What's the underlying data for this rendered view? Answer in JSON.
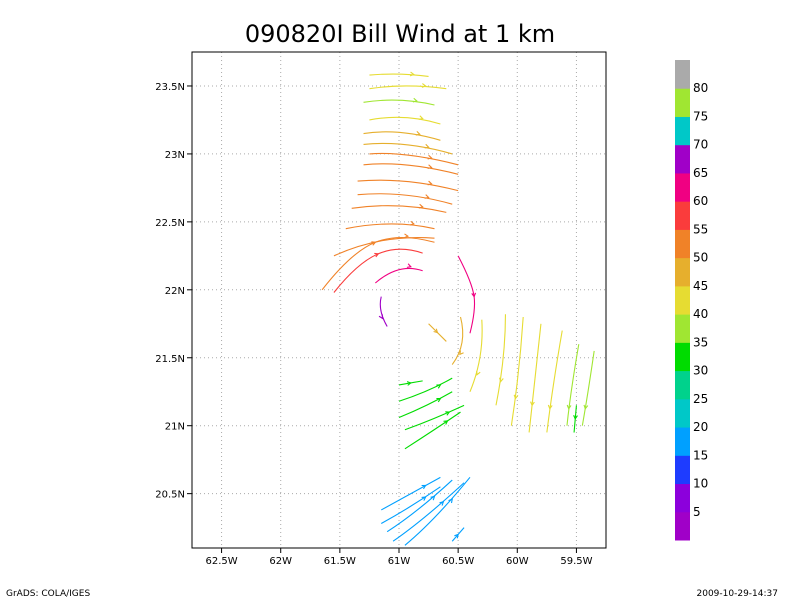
{
  "chart_data": {
    "type": "streamline",
    "title": "090820I Bill Wind at 1 km",
    "x_ticks": [
      "62.5W",
      "62W",
      "61.5W",
      "61W",
      "60.5W",
      "60W",
      "59.5W"
    ],
    "y_ticks": [
      "23.5N",
      "23N",
      "22.5N",
      "22N",
      "21.5N",
      "21N",
      "20.5N"
    ],
    "xlim": [
      -62.75,
      -59.25
    ],
    "ylim": [
      20.1,
      23.75
    ],
    "grid": true,
    "colorbar": {
      "labels": [
        "5",
        "10",
        "15",
        "20",
        "25",
        "30",
        "35",
        "40",
        "45",
        "50",
        "55",
        "60",
        "65",
        "70",
        "75",
        "80"
      ],
      "colors": [
        "#a000c8",
        "#8c00dc",
        "#1e3cff",
        "#00a0ff",
        "#00c8c8",
        "#00d28c",
        "#00dc00",
        "#a0e632",
        "#e6dc32",
        "#e6af2d",
        "#f08228",
        "#fa3c3c",
        "#f00082",
        "#a000c8",
        "#00c8c8",
        "#a0e632",
        "#aaaaaa"
      ]
    },
    "series": [
      {
        "speed_kt": 45,
        "points": [
          [
            -61.25,
            23.58
          ],
          [
            -61.0,
            23.6
          ],
          [
            -60.75,
            23.57
          ]
        ]
      },
      {
        "speed_kt": 45,
        "points": [
          [
            -61.25,
            23.48
          ],
          [
            -60.95,
            23.52
          ],
          [
            -60.6,
            23.48
          ]
        ]
      },
      {
        "speed_kt": 40,
        "points": [
          [
            -61.3,
            23.38
          ],
          [
            -61.0,
            23.42
          ],
          [
            -60.7,
            23.36
          ]
        ]
      },
      {
        "speed_kt": 45,
        "points": [
          [
            -61.25,
            23.25
          ],
          [
            -60.95,
            23.3
          ],
          [
            -60.65,
            23.22
          ]
        ]
      },
      {
        "speed_kt": 50,
        "points": [
          [
            -61.3,
            23.15
          ],
          [
            -61.0,
            23.19
          ],
          [
            -60.65,
            23.1
          ]
        ]
      },
      {
        "speed_kt": 50,
        "points": [
          [
            -61.3,
            23.07
          ],
          [
            -60.95,
            23.1
          ],
          [
            -60.55,
            23.0
          ]
        ]
      },
      {
        "speed_kt": 55,
        "points": [
          [
            -61.25,
            23.0
          ],
          [
            -60.95,
            23.02
          ],
          [
            -60.5,
            22.92
          ]
        ]
      },
      {
        "speed_kt": 55,
        "points": [
          [
            -61.3,
            22.92
          ],
          [
            -60.95,
            22.95
          ],
          [
            -60.5,
            22.85
          ]
        ]
      },
      {
        "speed_kt": 55,
        "points": [
          [
            -61.35,
            22.8
          ],
          [
            -60.95,
            22.83
          ],
          [
            -60.5,
            22.73
          ]
        ]
      },
      {
        "speed_kt": 55,
        "points": [
          [
            -61.35,
            22.7
          ],
          [
            -60.95,
            22.73
          ],
          [
            -60.55,
            22.63
          ]
        ]
      },
      {
        "speed_kt": 55,
        "points": [
          [
            -61.4,
            22.6
          ],
          [
            -61.0,
            22.65
          ],
          [
            -60.6,
            22.57
          ]
        ]
      },
      {
        "speed_kt": 55,
        "points": [
          [
            -61.45,
            22.45
          ],
          [
            -61.05,
            22.52
          ],
          [
            -60.7,
            22.45
          ]
        ]
      },
      {
        "speed_kt": 55,
        "points": [
          [
            -61.55,
            22.25
          ],
          [
            -61.15,
            22.41
          ],
          [
            -60.7,
            22.38
          ]
        ]
      },
      {
        "speed_kt": 55,
        "points": [
          [
            -61.65,
            22.0
          ],
          [
            -61.4,
            22.28
          ],
          [
            -61.0,
            22.42
          ],
          [
            -60.7,
            22.35
          ]
        ]
      },
      {
        "speed_kt": 60,
        "points": [
          [
            -61.55,
            21.98
          ],
          [
            -61.35,
            22.2
          ],
          [
            -61.0,
            22.33
          ],
          [
            -60.8,
            22.27
          ]
        ]
      },
      {
        "speed_kt": 65,
        "points": [
          [
            -61.2,
            22.05
          ],
          [
            -61.0,
            22.2
          ],
          [
            -60.8,
            22.14
          ]
        ]
      },
      {
        "speed_kt": 65,
        "points": [
          [
            -60.5,
            22.25
          ],
          [
            -60.38,
            22.05
          ],
          [
            -60.35,
            21.85
          ],
          [
            -60.4,
            21.68
          ]
        ]
      },
      {
        "speed_kt": 70,
        "points": [
          [
            -61.15,
            21.95
          ],
          [
            -61.18,
            21.85
          ],
          [
            -61.1,
            21.73
          ]
        ]
      },
      {
        "speed_kt": 50,
        "points": [
          [
            -60.75,
            21.75
          ],
          [
            -60.6,
            21.62
          ]
        ]
      },
      {
        "speed_kt": 50,
        "points": [
          [
            -60.48,
            21.8
          ],
          [
            -60.42,
            21.6
          ],
          [
            -60.55,
            21.45
          ]
        ]
      },
      {
        "speed_kt": 45,
        "points": [
          [
            -60.3,
            21.78
          ],
          [
            -60.28,
            21.5
          ],
          [
            -60.4,
            21.25
          ]
        ]
      },
      {
        "speed_kt": 45,
        "points": [
          [
            -60.1,
            21.82
          ],
          [
            -60.1,
            21.5
          ],
          [
            -60.18,
            21.15
          ]
        ]
      },
      {
        "speed_kt": 45,
        "points": [
          [
            -59.95,
            21.8
          ],
          [
            -59.98,
            21.4
          ],
          [
            -60.05,
            21.0
          ]
        ]
      },
      {
        "speed_kt": 45,
        "points": [
          [
            -59.8,
            21.75
          ],
          [
            -59.85,
            21.35
          ],
          [
            -59.9,
            20.95
          ]
        ]
      },
      {
        "speed_kt": 45,
        "points": [
          [
            -59.62,
            21.7
          ],
          [
            -59.7,
            21.3
          ],
          [
            -59.75,
            20.95
          ]
        ]
      },
      {
        "speed_kt": 40,
        "points": [
          [
            -59.48,
            21.6
          ],
          [
            -59.55,
            21.25
          ],
          [
            -59.58,
            21.0
          ]
        ]
      },
      {
        "speed_kt": 40,
        "points": [
          [
            -59.35,
            21.55
          ],
          [
            -59.4,
            21.25
          ],
          [
            -59.45,
            21.0
          ]
        ]
      },
      {
        "speed_kt": 35,
        "points": [
          [
            -59.5,
            21.15
          ],
          [
            -59.52,
            20.95
          ]
        ]
      },
      {
        "speed_kt": 35,
        "points": [
          [
            -61.0,
            21.3
          ],
          [
            -60.8,
            21.33
          ]
        ]
      },
      {
        "speed_kt": 35,
        "points": [
          [
            -61.0,
            21.18
          ],
          [
            -60.75,
            21.25
          ],
          [
            -60.55,
            21.35
          ]
        ]
      },
      {
        "speed_kt": 35,
        "points": [
          [
            -61.0,
            21.06
          ],
          [
            -60.75,
            21.15
          ],
          [
            -60.55,
            21.25
          ]
        ]
      },
      {
        "speed_kt": 35,
        "points": [
          [
            -60.95,
            20.97
          ],
          [
            -60.7,
            21.05
          ],
          [
            -60.45,
            21.15
          ]
        ]
      },
      {
        "speed_kt": 35,
        "points": [
          [
            -60.95,
            20.83
          ],
          [
            -60.7,
            20.97
          ],
          [
            -60.48,
            21.1
          ]
        ]
      },
      {
        "speed_kt": 20,
        "points": [
          [
            -61.15,
            20.38
          ],
          [
            -60.9,
            20.5
          ],
          [
            -60.65,
            20.62
          ]
        ]
      },
      {
        "speed_kt": 20,
        "points": [
          [
            -61.15,
            20.28
          ],
          [
            -60.9,
            20.4
          ],
          [
            -60.65,
            20.55
          ]
        ]
      },
      {
        "speed_kt": 20,
        "points": [
          [
            -61.1,
            20.22
          ],
          [
            -60.85,
            20.36
          ],
          [
            -60.55,
            20.6
          ]
        ]
      },
      {
        "speed_kt": 20,
        "points": [
          [
            -61.05,
            20.15
          ],
          [
            -60.8,
            20.3
          ],
          [
            -60.45,
            20.58
          ]
        ]
      },
      {
        "speed_kt": 20,
        "points": [
          [
            -60.95,
            20.12
          ],
          [
            -60.7,
            20.3
          ],
          [
            -60.4,
            20.62
          ]
        ]
      },
      {
        "speed_kt": 20,
        "points": [
          [
            -60.55,
            20.15
          ],
          [
            -60.45,
            20.25
          ]
        ]
      }
    ]
  },
  "footer": {
    "left": "GrADS: COLA/IGES",
    "right": "2009-10-29-14:37"
  }
}
